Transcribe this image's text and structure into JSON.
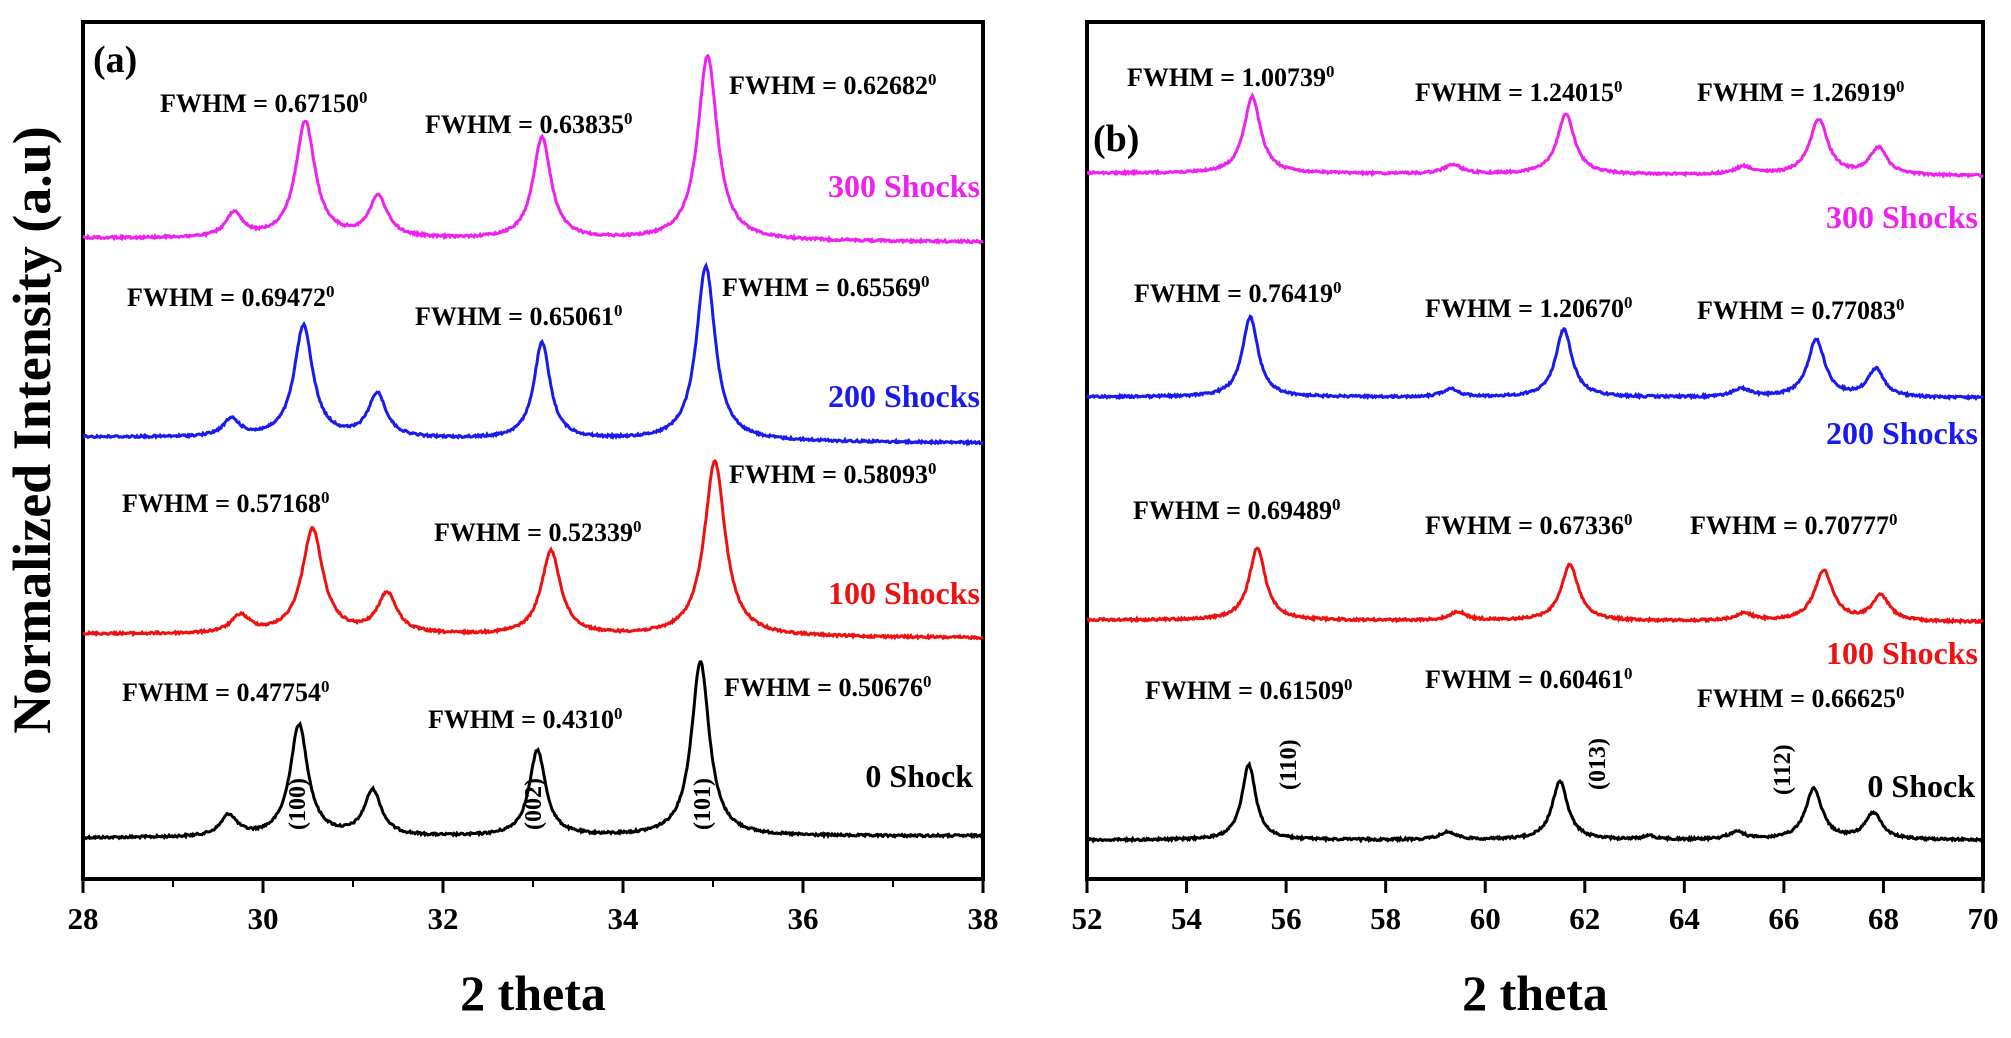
{
  "figure": {
    "ylabel": "Normalized Intensity (a.u)",
    "colors": {
      "axis": "#000000",
      "0": "#000000",
      "100": "#ee1111",
      "200": "#1a1aee",
      "300": "#ee22ee"
    }
  },
  "chart_data": [
    {
      "type": "line",
      "panel": "(a)",
      "xlabel": "2 theta",
      "xlim": [
        28,
        38
      ],
      "xticks": [
        "28",
        "30",
        "32",
        "34",
        "36",
        "38"
      ],
      "series": [
        {
          "name": "0 Shock",
          "color": "#000000",
          "peaks": [
            {
              "pos": 29.62,
              "h": 0.12,
              "w": 0.22
            },
            {
              "pos": 30.4,
              "h": 0.64,
              "w": 0.24
            },
            {
              "pos": 31.22,
              "h": 0.26,
              "w": 0.23
            },
            {
              "pos": 33.05,
              "h": 0.49,
              "w": 0.22
            },
            {
              "pos": 34.86,
              "h": 1.0,
              "w": 0.24
            }
          ],
          "fwhm": [
            {
              "text": "FWHM = 0.47754",
              "sup": "0"
            },
            {
              "text": "FWHM = 0.4310",
              "sup": "0"
            },
            {
              "text": "FWHM = 0.50676",
              "sup": "0"
            }
          ]
        },
        {
          "name": "100 Shocks",
          "color": "#ee1111",
          "peaks": [
            {
              "pos": 29.75,
              "h": 0.1,
              "w": 0.25
            },
            {
              "pos": 30.55,
              "h": 0.6,
              "w": 0.28
            },
            {
              "pos": 31.38,
              "h": 0.23,
              "w": 0.26
            },
            {
              "pos": 33.2,
              "h": 0.48,
              "w": 0.26
            },
            {
              "pos": 35.02,
              "h": 1.0,
              "w": 0.28
            }
          ],
          "fwhm": [
            {
              "text": "FWHM = 0.57168",
              "sup": "0"
            },
            {
              "text": "FWHM = 0.52339",
              "sup": "0"
            },
            {
              "text": "FWHM = 0.58093",
              "sup": "0"
            }
          ]
        },
        {
          "name": "200 Shocks",
          "color": "#1a1aee",
          "peaks": [
            {
              "pos": 29.65,
              "h": 0.1,
              "w": 0.22
            },
            {
              "pos": 30.45,
              "h": 0.64,
              "w": 0.25
            },
            {
              "pos": 31.27,
              "h": 0.25,
              "w": 0.24
            },
            {
              "pos": 33.1,
              "h": 0.55,
              "w": 0.22
            },
            {
              "pos": 34.92,
              "h": 1.0,
              "w": 0.25
            }
          ],
          "fwhm": [
            {
              "text": "FWHM = 0.69472",
              "sup": "0"
            },
            {
              "text": "FWHM = 0.65061",
              "sup": "0"
            },
            {
              "text": "FWHM = 0.65569",
              "sup": "0"
            }
          ]
        },
        {
          "name": "300 Shocks",
          "color": "#ee22ee",
          "peaks": [
            {
              "pos": 29.68,
              "h": 0.13,
              "w": 0.22
            },
            {
              "pos": 30.47,
              "h": 0.63,
              "w": 0.26
            },
            {
              "pos": 31.28,
              "h": 0.22,
              "w": 0.25
            },
            {
              "pos": 33.1,
              "h": 0.55,
              "w": 0.24
            },
            {
              "pos": 34.94,
              "h": 1.0,
              "w": 0.26
            }
          ],
          "fwhm": [
            {
              "text": "FWHM = 0.67150",
              "sup": "0"
            },
            {
              "text": "FWHM = 0.63835",
              "sup": "0"
            },
            {
              "text": "FWHM = 0.62682",
              "sup": "0"
            }
          ]
        }
      ],
      "miller": [
        "(100)",
        "(002)",
        "(101)"
      ]
    },
    {
      "type": "line",
      "panel": "(b)",
      "xlabel": "2 theta",
      "xlim": [
        52,
        70
      ],
      "xticks": [
        "52",
        "54",
        "56",
        "58",
        "60",
        "62",
        "64",
        "66",
        "68",
        "70"
      ],
      "series": [
        {
          "name": "0 Shock",
          "color": "#000000",
          "peaks": [
            {
              "pos": 55.25,
              "h": 1.0,
              "w": 0.34
            },
            {
              "pos": 59.25,
              "h": 0.1,
              "w": 0.4
            },
            {
              "pos": 61.5,
              "h": 0.78,
              "w": 0.38
            },
            {
              "pos": 63.3,
              "h": 0.05,
              "w": 0.3
            },
            {
              "pos": 65.05,
              "h": 0.1,
              "w": 0.4
            },
            {
              "pos": 66.6,
              "h": 0.68,
              "w": 0.4
            },
            {
              "pos": 67.8,
              "h": 0.35,
              "w": 0.4
            }
          ],
          "fwhm": [
            {
              "text": "FWHM = 0.61509",
              "sup": "0"
            },
            {
              "text": "FWHM = 0.60461",
              "sup": "0"
            },
            {
              "text": "FWHM = 0.66625",
              "sup": "0"
            }
          ]
        },
        {
          "name": "100 Shocks",
          "color": "#ee1111",
          "peaks": [
            {
              "pos": 55.42,
              "h": 1.0,
              "w": 0.4
            },
            {
              "pos": 59.45,
              "h": 0.12,
              "w": 0.4
            },
            {
              "pos": 61.7,
              "h": 0.78,
              "w": 0.42
            },
            {
              "pos": 65.2,
              "h": 0.1,
              "w": 0.45
            },
            {
              "pos": 66.8,
              "h": 0.7,
              "w": 0.45
            },
            {
              "pos": 67.95,
              "h": 0.35,
              "w": 0.42
            }
          ],
          "fwhm": [
            {
              "text": "FWHM = 0.69489",
              "sup": "0"
            },
            {
              "text": "FWHM = 0.67336",
              "sup": "0"
            },
            {
              "text": "FWHM = 0.70777",
              "sup": "0"
            }
          ]
        },
        {
          "name": "200 Shocks",
          "color": "#1a1aee",
          "peaks": [
            {
              "pos": 55.28,
              "h": 1.0,
              "w": 0.38
            },
            {
              "pos": 59.3,
              "h": 0.1,
              "w": 0.4
            },
            {
              "pos": 61.58,
              "h": 0.85,
              "w": 0.4
            },
            {
              "pos": 65.15,
              "h": 0.1,
              "w": 0.45
            },
            {
              "pos": 66.65,
              "h": 0.72,
              "w": 0.42
            },
            {
              "pos": 67.85,
              "h": 0.35,
              "w": 0.4
            }
          ],
          "fwhm": [
            {
              "text": "FWHM = 0.76419",
              "sup": "0"
            },
            {
              "text": "FWHM = 1.20670",
              "sup": "0"
            },
            {
              "text": "FWHM = 0.77083",
              "sup": "0"
            }
          ]
        },
        {
          "name": "300 Shocks",
          "color": "#ee22ee",
          "peaks": [
            {
              "pos": 55.32,
              "h": 1.0,
              "w": 0.4
            },
            {
              "pos": 59.35,
              "h": 0.12,
              "w": 0.42
            },
            {
              "pos": 61.62,
              "h": 0.78,
              "w": 0.42
            },
            {
              "pos": 65.2,
              "h": 0.1,
              "w": 0.45
            },
            {
              "pos": 66.7,
              "h": 0.72,
              "w": 0.44
            },
            {
              "pos": 67.9,
              "h": 0.35,
              "w": 0.42
            }
          ],
          "fwhm": [
            {
              "text": "FWHM = 1.00739",
              "sup": "0"
            },
            {
              "text": "FWHM = 1.24015",
              "sup": "0"
            },
            {
              "text": "FWHM = 1.26919",
              "sup": "0"
            }
          ]
        }
      ],
      "miller": [
        "(110)",
        "(013)",
        "(112)"
      ]
    }
  ]
}
